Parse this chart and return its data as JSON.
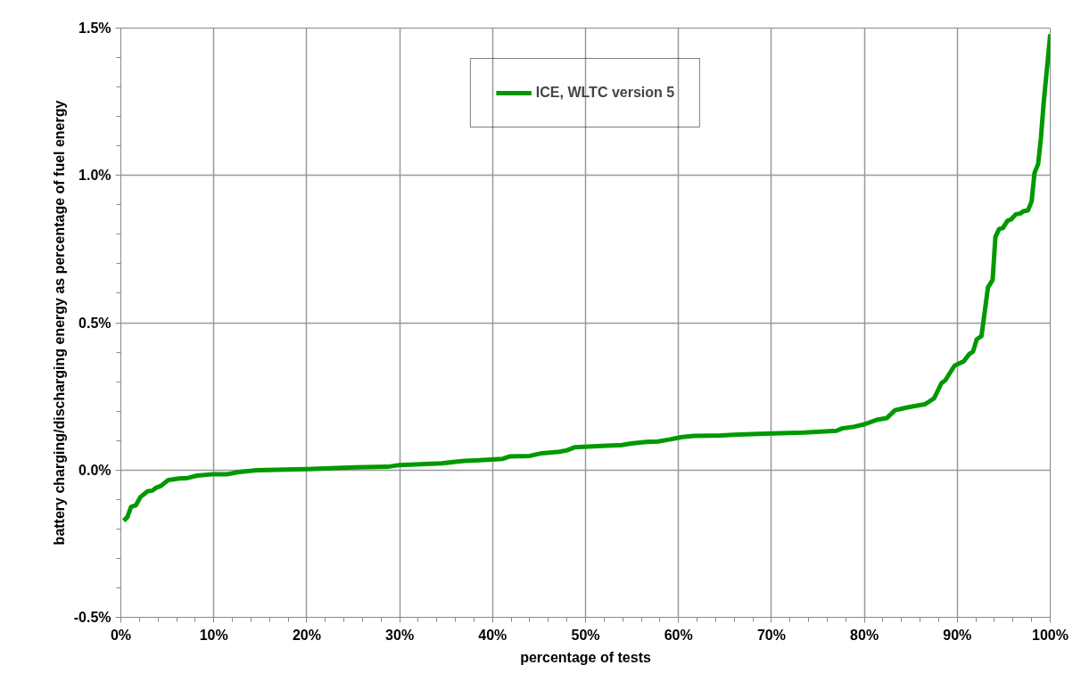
{
  "chart_data": {
    "type": "line",
    "xlabel": "percentage of tests",
    "ylabel": "battery charging/discharging energy as percentage of fuel energy",
    "xlim": [
      0,
      100
    ],
    "ylim": [
      -0.5,
      1.5
    ],
    "xticks": [
      {
        "value": 0,
        "label": "0%"
      },
      {
        "value": 10,
        "label": "10%"
      },
      {
        "value": 20,
        "label": "20%"
      },
      {
        "value": 30,
        "label": "30%"
      },
      {
        "value": 40,
        "label": "40%"
      },
      {
        "value": 50,
        "label": "50%"
      },
      {
        "value": 60,
        "label": "60%"
      },
      {
        "value": 70,
        "label": "70%"
      },
      {
        "value": 80,
        "label": "80%"
      },
      {
        "value": 90,
        "label": "90%"
      },
      {
        "value": 100,
        "label": "100%"
      }
    ],
    "yticks": [
      {
        "value": -0.5,
        "label": "-0.5%"
      },
      {
        "value": 0,
        "label": "0.0%"
      },
      {
        "value": 0.5,
        "label": "0.5%"
      },
      {
        "value": 1.0,
        "label": "1.0%"
      },
      {
        "value": 1.5,
        "label": "1.5%"
      }
    ],
    "grid": true,
    "legend": "top",
    "marker": "none",
    "line_style": "solid",
    "series": [
      {
        "name": "ICE, WLTC version 5",
        "color": "#009900",
        "x": [
          0.3,
          0.7,
          1.1,
          1.6,
          2.1,
          2.9,
          3.4,
          3.8,
          4.3,
          5.1,
          6.3,
          7.2,
          8.2,
          10,
          11.5,
          12.7,
          14.6,
          20,
          25.2,
          28.7,
          30,
          34.5,
          37,
          38.6,
          41.1,
          41.8,
          44,
          45.3,
          47.2,
          48,
          48.8,
          51.7,
          53.9,
          54.9,
          56.5,
          57.8,
          59.1,
          60.4,
          61.6,
          64.5,
          66.4,
          70,
          73.5,
          77,
          77.6,
          78.9,
          80,
          81.3,
          82.4,
          83.3,
          84,
          85,
          86.5,
          87,
          87.5,
          88.3,
          88.7,
          89.7,
          90.7,
          91.3,
          91.7,
          92.1,
          92.6,
          92.9,
          93.3,
          93.8,
          94.1,
          94.5,
          94.9,
          95.4,
          95.8,
          96.3,
          96.8,
          97.1,
          97.6,
          98,
          98.3,
          98.7,
          99,
          99.3,
          99.7,
          100
        ],
        "values": [
          -0.172,
          -0.16,
          -0.125,
          -0.12,
          -0.092,
          -0.072,
          -0.07,
          -0.06,
          -0.054,
          -0.034,
          -0.029,
          -0.027,
          -0.019,
          -0.014,
          -0.014,
          -0.007,
          -0.001,
          0.003,
          0.009,
          0.011,
          0.017,
          0.023,
          0.031,
          0.033,
          0.038,
          0.046,
          0.048,
          0.057,
          0.062,
          0.067,
          0.077,
          0.082,
          0.085,
          0.09,
          0.095,
          0.097,
          0.104,
          0.112,
          0.116,
          0.117,
          0.12,
          0.124,
          0.127,
          0.133,
          0.141,
          0.147,
          0.155,
          0.17,
          0.176,
          0.203,
          0.208,
          0.215,
          0.223,
          0.233,
          0.243,
          0.295,
          0.304,
          0.354,
          0.369,
          0.394,
          0.402,
          0.444,
          0.454,
          0.525,
          0.62,
          0.645,
          0.791,
          0.818,
          0.821,
          0.846,
          0.851,
          0.868,
          0.871,
          0.878,
          0.881,
          0.912,
          1.007,
          1.039,
          1.128,
          1.248,
          1.379,
          1.479
        ]
      }
    ]
  }
}
